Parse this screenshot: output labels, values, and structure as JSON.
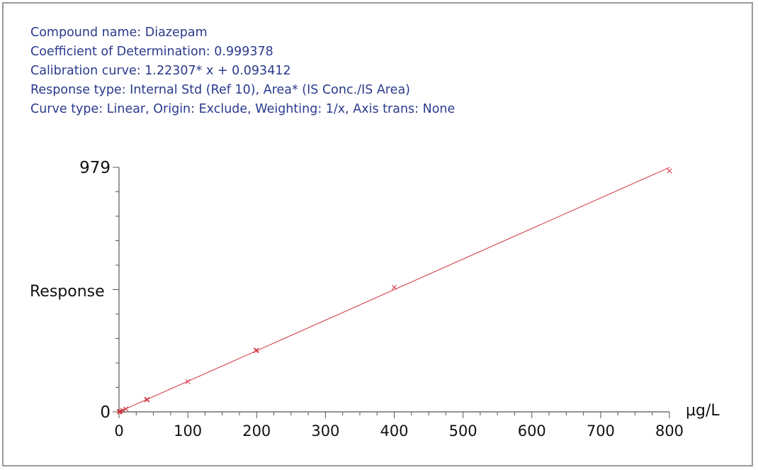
{
  "header": {
    "lines": [
      "Compound name: Diazepam",
      "Coefficient of Determination: 0.999378",
      "Calibration curve: 1.22307* x + 0.093412",
      "Response type: Internal Std (Ref 10), Area* (IS Conc./IS Area)",
      "Curve type: Linear, Origin: Exclude, Weighting: 1/x, Axis trans: None"
    ]
  },
  "chart_data": {
    "type": "scatter",
    "ylabel": "Response",
    "xunit": "µg/L",
    "xlim": [
      0,
      800
    ],
    "ylim": [
      0,
      979
    ],
    "x_ticks": [
      0,
      100,
      200,
      300,
      400,
      500,
      600,
      700,
      800
    ],
    "y_ticks": [
      0,
      979
    ],
    "fit": {
      "slope": 1.22307,
      "intercept": 0.093412
    },
    "points": [
      {
        "x": 0,
        "y": 0
      },
      {
        "x": 1,
        "y": 1
      },
      {
        "x": 2,
        "y": 2.5
      },
      {
        "x": 5,
        "y": 6
      },
      {
        "x": 10,
        "y": 12
      },
      {
        "x": 40,
        "y": 48
      },
      {
        "x": 41,
        "y": 50
      },
      {
        "x": 100,
        "y": 121
      },
      {
        "x": 199,
        "y": 245
      },
      {
        "x": 200,
        "y": 247
      },
      {
        "x": 400,
        "y": 499
      },
      {
        "x": 800,
        "y": 965
      }
    ],
    "colors": {
      "fit": "#d0303c",
      "points": "#d0303c",
      "axis": "#555555"
    }
  }
}
